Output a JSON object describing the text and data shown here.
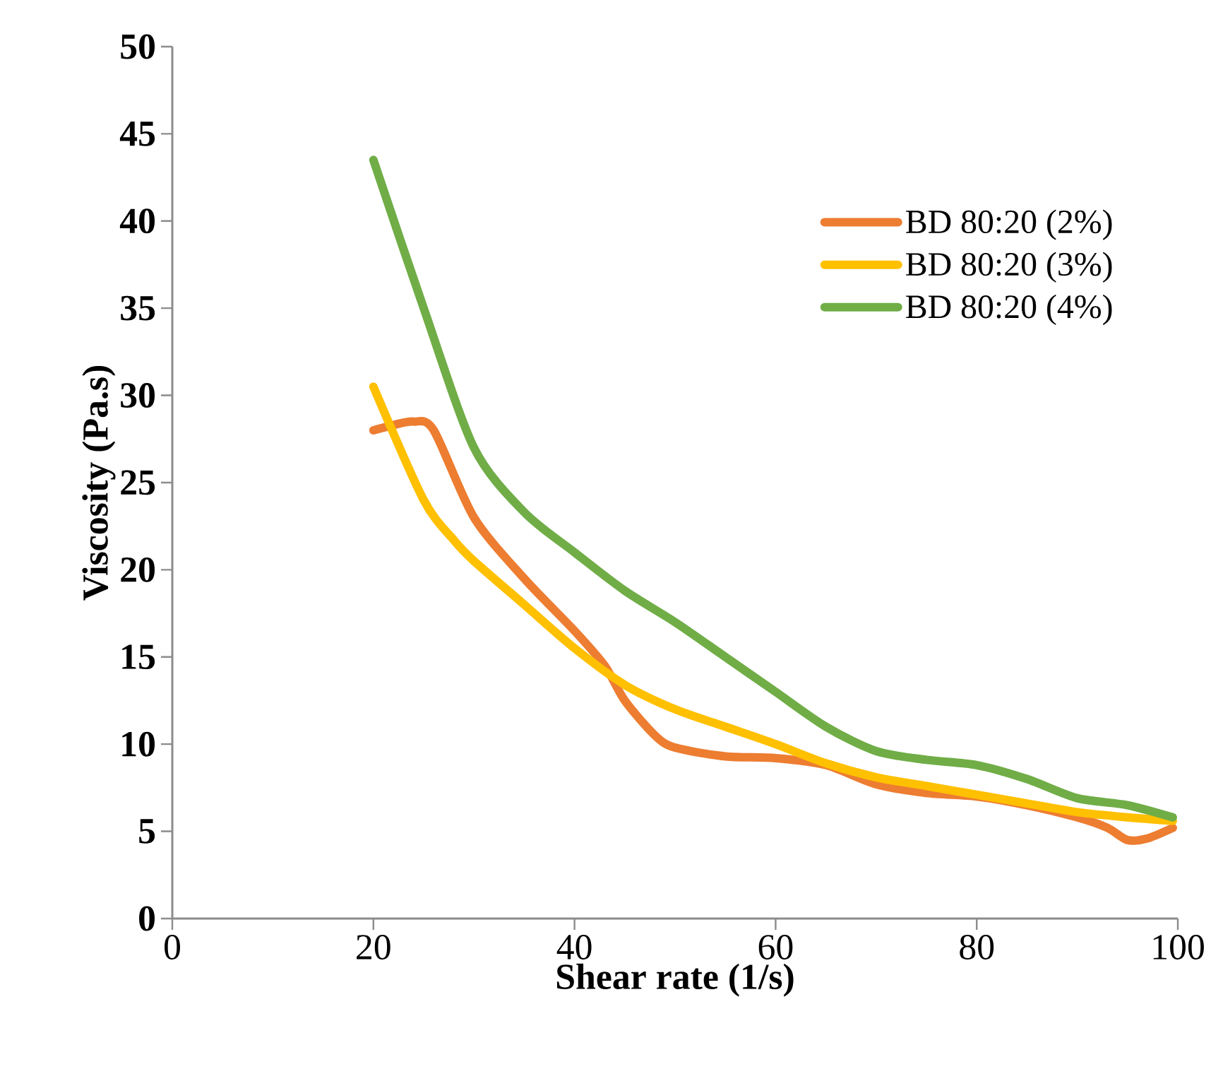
{
  "chart_data": {
    "type": "line",
    "xlabel": "Shear rate (1/s)",
    "ylabel": "Viscosity (Pa.s)",
    "xlim": [
      0,
      100
    ],
    "ylim": [
      0,
      50
    ],
    "xticks": [
      0,
      20,
      40,
      60,
      80,
      100
    ],
    "yticks": [
      0,
      5,
      10,
      15,
      20,
      25,
      30,
      35,
      40,
      45,
      50
    ],
    "grid": false,
    "legend": "right",
    "marker": "none",
    "line_style": "solid",
    "series": [
      {
        "name": "BD 80:20 (2%)",
        "color": "#ed7d31",
        "x": [
          20,
          22,
          24,
          26,
          30,
          35,
          40,
          43,
          45,
          48,
          50,
          55,
          60,
          65,
          70,
          75,
          80,
          85,
          90,
          93,
          95,
          97,
          99.5
        ],
        "values": [
          28,
          28.3,
          28.5,
          28,
          23,
          19.5,
          16.5,
          14.5,
          12.5,
          10.5,
          9.8,
          9.3,
          9.2,
          8.8,
          7.7,
          7.2,
          7,
          6.5,
          5.8,
          5.2,
          4.5,
          4.6,
          5.2
        ]
      },
      {
        "name": "BD 80:20 (3%)",
        "color": "#ffc000",
        "x": [
          20,
          25,
          28,
          30,
          35,
          40,
          45,
          50,
          55,
          60,
          65,
          70,
          75,
          80,
          85,
          90,
          95,
          99.5
        ],
        "values": [
          30.5,
          24,
          21.7,
          20.5,
          18,
          15.5,
          13.4,
          12,
          11,
          10,
          8.9,
          8.1,
          7.6,
          7.1,
          6.6,
          6.1,
          5.8,
          5.6
        ]
      },
      {
        "name": "BD 80:20 (4%)",
        "color": "#70ad47",
        "x": [
          20,
          25,
          30,
          35,
          40,
          45,
          50,
          55,
          60,
          65,
          70,
          75,
          80,
          85,
          90,
          95,
          99.5
        ],
        "values": [
          43.5,
          35,
          27,
          23.3,
          21,
          18.8,
          17,
          15,
          13,
          11,
          9.6,
          9.1,
          8.8,
          8,
          6.9,
          6.5,
          5.8
        ]
      }
    ]
  }
}
